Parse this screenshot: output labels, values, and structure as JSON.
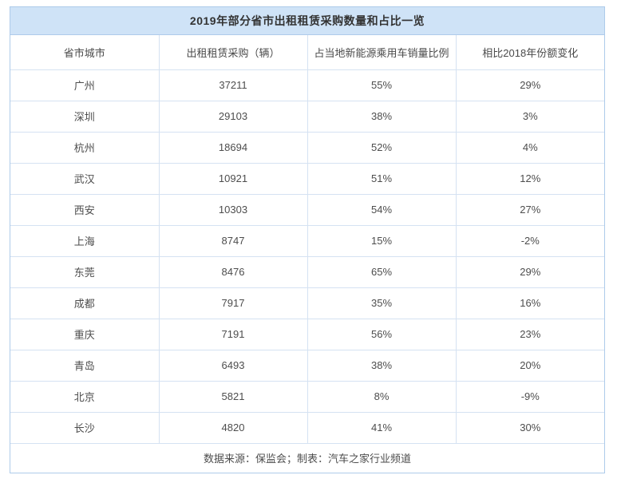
{
  "colors": {
    "title_bar_background": "#cfe3f7",
    "outer_border": "#aecbea",
    "cell_border": "#d5e2f2",
    "title_text": "#333333",
    "cell_text": "#4d4d4d",
    "page_background": "#ffffff"
  },
  "chart_data": {
    "type": "table",
    "title": "2019年部分省市出租租赁采购数量和占比一览",
    "columns": [
      "省市城市",
      "出租租赁采购（辆）",
      "占当地新能源乘用车销量比例",
      "相比2018年份额变化"
    ],
    "rows": [
      {
        "city": "广州",
        "purchases": 37211,
        "sales_share": "55%",
        "yoy_change": "29%"
      },
      {
        "city": "深圳",
        "purchases": 29103,
        "sales_share": "38%",
        "yoy_change": "3%"
      },
      {
        "city": "杭州",
        "purchases": 18694,
        "sales_share": "52%",
        "yoy_change": "4%"
      },
      {
        "city": "武汉",
        "purchases": 10921,
        "sales_share": "51%",
        "yoy_change": "12%"
      },
      {
        "city": "西安",
        "purchases": 10303,
        "sales_share": "54%",
        "yoy_change": "27%"
      },
      {
        "city": "上海",
        "purchases": 8747,
        "sales_share": "15%",
        "yoy_change": "-2%"
      },
      {
        "city": "东莞",
        "purchases": 8476,
        "sales_share": "65%",
        "yoy_change": "29%"
      },
      {
        "city": "成都",
        "purchases": 7917,
        "sales_share": "35%",
        "yoy_change": "16%"
      },
      {
        "city": "重庆",
        "purchases": 7191,
        "sales_share": "56%",
        "yoy_change": "23%"
      },
      {
        "city": "青岛",
        "purchases": 6493,
        "sales_share": "38%",
        "yoy_change": "20%"
      },
      {
        "city": "北京",
        "purchases": 5821,
        "sales_share": "8%",
        "yoy_change": "-9%"
      },
      {
        "city": "长沙",
        "purchases": 4820,
        "sales_share": "41%",
        "yoy_change": "30%"
      }
    ],
    "footer": "数据来源：保监会；制表：汽车之家行业频道"
  }
}
